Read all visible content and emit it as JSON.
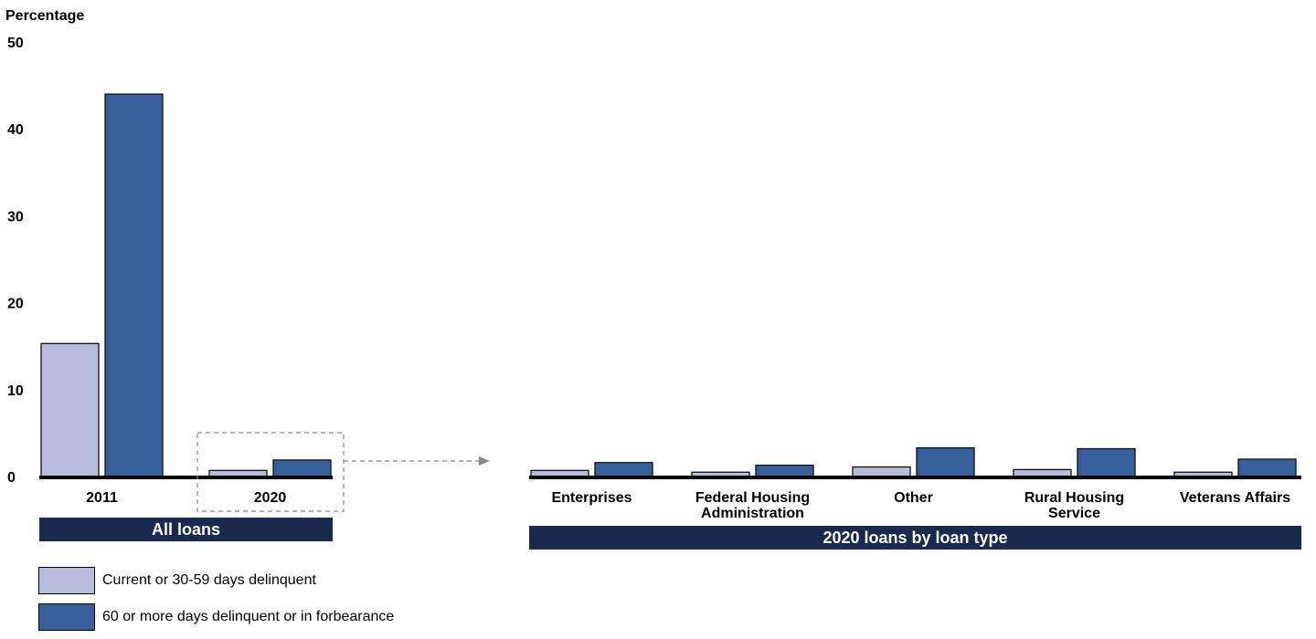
{
  "chart_data": {
    "type": "bar",
    "ylabel": "Percentage",
    "ylim": [
      0,
      50
    ],
    "yticks": [
      0,
      10,
      20,
      30,
      40,
      50
    ],
    "colors": {
      "current": "#b8bcdc",
      "delinquent": "#365f9c",
      "band": "#1a2a4f"
    },
    "series": [
      {
        "name": "Current or 30-59 days delinquent",
        "key": "current"
      },
      {
        "name": "60 or more days delinquent or in forbearance",
        "key": "delinquent"
      }
    ],
    "panels": [
      {
        "band": "All loans",
        "categories": [
          "2011",
          "2020"
        ],
        "values": {
          "current": [
            15.3,
            0.7
          ],
          "delinquent": [
            44.0,
            1.9
          ]
        }
      },
      {
        "band": "2020 loans by loan type",
        "categories": [
          "Enterprises",
          "Federal Housing\nAdministration",
          "Other",
          "Rural Housing\nService",
          "Veterans Affairs"
        ],
        "values": {
          "current": [
            0.7,
            0.5,
            1.1,
            0.8,
            0.5
          ],
          "delinquent": [
            1.6,
            1.3,
            3.3,
            3.2,
            2.0
          ]
        }
      }
    ]
  }
}
